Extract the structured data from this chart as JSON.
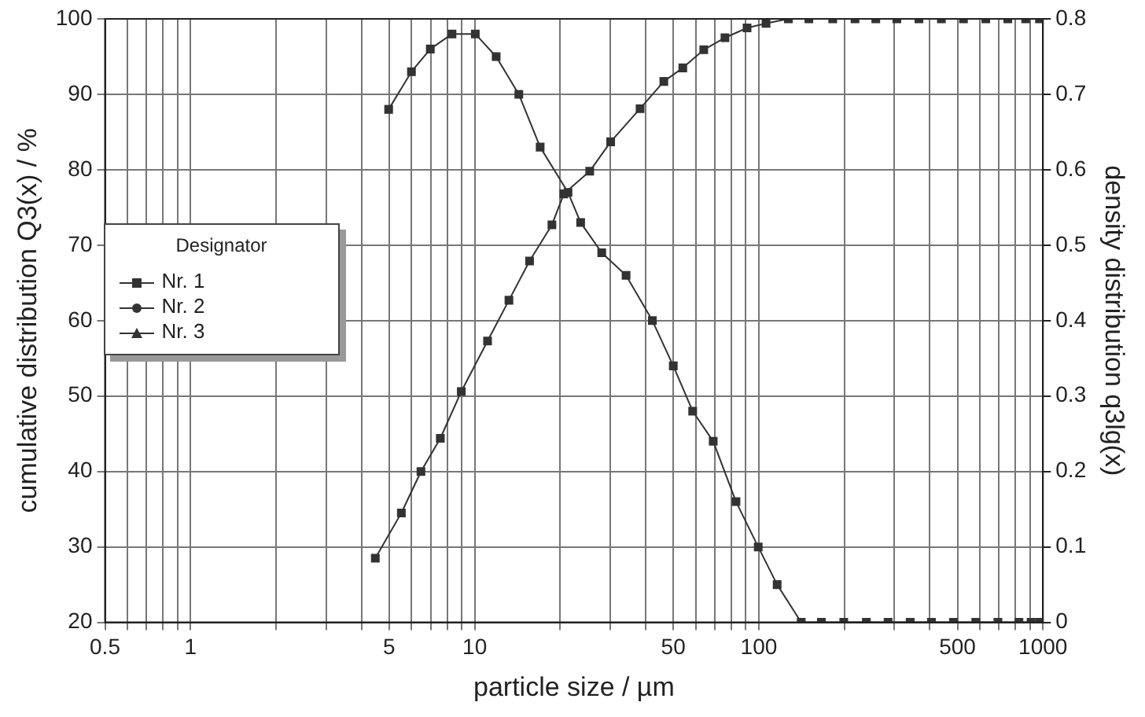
{
  "chart_data": {
    "type": "line",
    "xlabel": "particle size / µm",
    "ylabel": "cumulative distribution Q3(x) / %",
    "y2label": "density distribution q3lg(x)",
    "legend_title": "Designator",
    "legend": "top left",
    "grid": true,
    "log": "x",
    "line_style": "solid",
    "xlim": [
      0.5,
      1000
    ],
    "ylim": [
      20,
      100
    ],
    "y2lim": [
      0,
      0.8
    ],
    "xticks": [
      0.5,
      {
        "value": 0.6,
        "label": null
      },
      {
        "value": 0.7,
        "label": null
      },
      {
        "value": 0.8,
        "label": null
      },
      {
        "value": 0.9,
        "label": null
      },
      1,
      {
        "value": 2,
        "label": null
      },
      {
        "value": 3,
        "label": null
      },
      {
        "value": 4,
        "label": null
      },
      5,
      {
        "value": 6,
        "label": null
      },
      {
        "value": 7,
        "label": null
      },
      {
        "value": 8,
        "label": null
      },
      {
        "value": 9,
        "label": null
      },
      10,
      {
        "value": 20,
        "label": null
      },
      {
        "value": 30,
        "label": null
      },
      {
        "value": 40,
        "label": null
      },
      50,
      {
        "value": 60,
        "label": null
      },
      {
        "value": 70,
        "label": null
      },
      {
        "value": 80,
        "label": null
      },
      {
        "value": 90,
        "label": null
      },
      100,
      {
        "value": 200,
        "label": null
      },
      {
        "value": 300,
        "label": null
      },
      {
        "value": 400,
        "label": null
      },
      500,
      {
        "value": 600,
        "label": null
      },
      {
        "value": 700,
        "label": null
      },
      {
        "value": 800,
        "label": null
      },
      {
        "value": 900,
        "label": null
      },
      1000
    ],
    "yticks": [
      20,
      30,
      40,
      50,
      60,
      70,
      80,
      90,
      100
    ],
    "y2ticks": [
      0,
      0.1,
      0.2,
      0.3,
      0.4,
      0.5,
      0.6,
      0.7,
      0.8
    ],
    "series": [
      {
        "name": "Nr. 1",
        "color": "#333333",
        "marker": "square",
        "x": [
          4.47,
          5.52,
          6.47,
          7.57,
          8.97,
          11.1,
          13.2,
          15.6,
          18.7,
          20.6,
          25.4,
          30.1,
          38.2,
          46.3,
          54,
          64,
          76,
          90.9,
          106,
          127,
          150,
          182,
          218,
          258,
          306,
          366,
          439,
          525,
          629,
          752,
          869,
          972
        ],
        "values": [
          28.5,
          34.5,
          40,
          44.4,
          50.6,
          57.3,
          62.7,
          67.9,
          72.7,
          76.8,
          79.8,
          83.7,
          88.1,
          91.7,
          93.5,
          95.9,
          97.5,
          98.8,
          99.4,
          100,
          100,
          100,
          100,
          100,
          100,
          100,
          100,
          100,
          100,
          100,
          100,
          100
        ]
      },
      {
        "color": "#333333",
        "marker": "square",
        "axis": "y2",
        "x": [
          4.98,
          5.99,
          6.98,
          8.32,
          10.05,
          11.9,
          14.3,
          17,
          21.3,
          23.6,
          28,
          34.1,
          42.2,
          50,
          58.5,
          69.1,
          83.1,
          99.5,
          116,
          141,
          166,
          199,
          239,
          285,
          341,
          405,
          484,
          580,
          694,
          823,
          908,
          972
        ],
        "values": [
          0.68,
          0.73,
          0.76,
          0.78,
          0.78,
          0.75,
          0.7,
          0.63,
          0.57,
          0.53,
          0.49,
          0.46,
          0.4,
          0.34,
          0.28,
          0.24,
          0.16,
          0.1,
          0.05,
          0,
          0,
          0,
          0,
          0,
          0,
          0,
          0,
          0,
          0,
          0,
          0,
          0
        ]
      },
      {
        "name": "Nr. 2",
        "color": "#333333",
        "marker": "circle"
      },
      {
        "name": "Nr. 3",
        "color": "#333333",
        "marker": "triangle"
      }
    ]
  }
}
